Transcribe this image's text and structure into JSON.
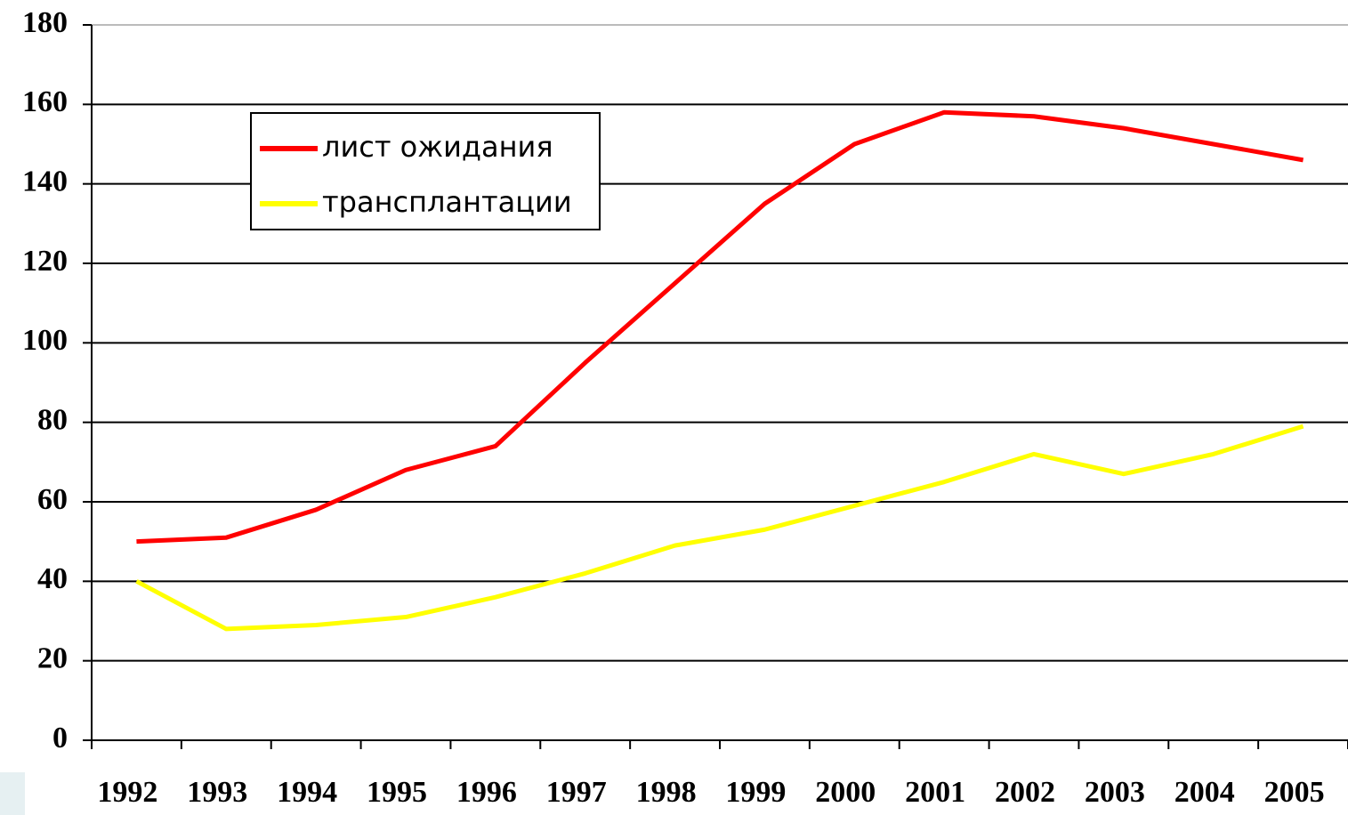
{
  "chart_data": {
    "type": "line",
    "categories": [
      "1992",
      "1993",
      "1994",
      "1995",
      "1996",
      "1997",
      "1998",
      "1999",
      "2000",
      "2001",
      "2002",
      "2003",
      "2004",
      "2005"
    ],
    "series": [
      {
        "name": "лист ожидания",
        "color": "#ff0000",
        "values": [
          50,
          51,
          58,
          68,
          74,
          95,
          115,
          135,
          150,
          158,
          157,
          154,
          150,
          146
        ]
      },
      {
        "name": "трансплантации",
        "color": "#ffff00",
        "values": [
          40,
          28,
          29,
          31,
          36,
          42,
          49,
          53,
          59,
          65,
          72,
          67,
          72,
          79
        ]
      }
    ],
    "ylim": [
      0,
      180
    ],
    "yticks": [
      0,
      20,
      40,
      60,
      80,
      100,
      120,
      140,
      160,
      180
    ],
    "grid": true
  }
}
